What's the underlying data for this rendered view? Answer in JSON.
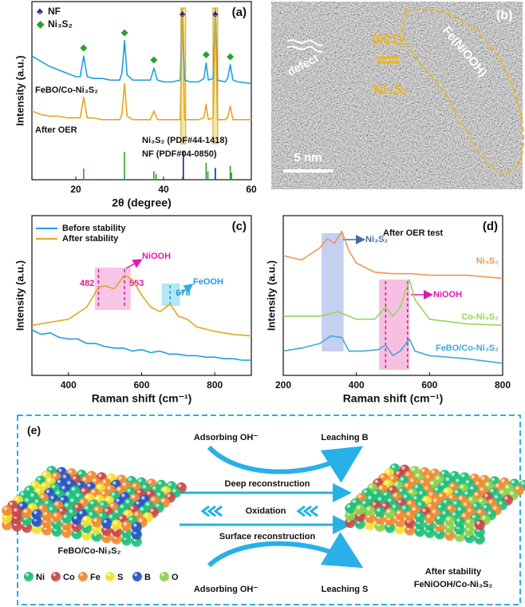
{
  "chart_data": [
    {
      "type": "line",
      "label": "(a)",
      "xlabel": "2θ (degree)",
      "ylabel": "Intensity (a.u.)",
      "xlim": [
        10,
        60
      ],
      "xticks": [
        20,
        40,
        60
      ],
      "ylim": [
        0,
        100
      ],
      "legend": [
        {
          "symbol": "♣",
          "label": "NF",
          "color": "#1a2a6c"
        },
        {
          "symbol": "◆",
          "label": "Ni₃S₂",
          "color": "#2ca02c"
        }
      ],
      "x": [
        10,
        12,
        14,
        16,
        18,
        20,
        21,
        21.8,
        22.6,
        24,
        26,
        28,
        30,
        30.5,
        31.1,
        31.7,
        33,
        35,
        37,
        37.8,
        38.6,
        40,
        42,
        43.8,
        44.3,
        44.8,
        46,
        48,
        49.2,
        49.7,
        50.2,
        51.3,
        51.8,
        52.3,
        54,
        54.6,
        55.2,
        55.8,
        57,
        60
      ],
      "series": [
        {
          "name": "FeBO/Co-Ni₃S₂",
          "color": "#1e9fe0",
          "values": [
            72,
            69,
            66,
            64,
            62,
            60,
            60,
            72,
            60,
            59,
            59,
            58,
            58,
            62,
            81,
            61,
            58,
            58,
            58,
            65,
            58,
            57,
            57,
            58,
            100,
            58,
            57,
            57,
            59,
            68,
            58,
            59,
            100,
            58,
            57,
            59,
            67,
            58,
            57,
            56
          ]
        },
        {
          "name": "After OER",
          "color": "#e3a623",
          "values": [
            40,
            38,
            37,
            37,
            36,
            36,
            36,
            48,
            36,
            36,
            35,
            35,
            35,
            38,
            56,
            37,
            35,
            35,
            35,
            40,
            35,
            35,
            35,
            35,
            100,
            35,
            35,
            35,
            36,
            44,
            35,
            36,
            100,
            35,
            35,
            36,
            43,
            35,
            35,
            35
          ]
        }
      ],
      "peak_markers": [
        {
          "x": 21.8,
          "symbol": "◆"
        },
        {
          "x": 31.1,
          "symbol": "◆"
        },
        {
          "x": 37.8,
          "symbol": "◆"
        },
        {
          "x": 44.3,
          "symbol": "♣"
        },
        {
          "x": 49.7,
          "symbol": "◆"
        },
        {
          "x": 51.8,
          "symbol": "♣"
        },
        {
          "x": 55.2,
          "symbol": "◆"
        }
      ],
      "references": [
        {
          "name": "Ni₃S₂ (PDF#44-1418)",
          "color": "#2ca02c",
          "x": [
            21.8,
            31.1,
            37.8,
            38.3,
            44.3,
            49.7,
            50.1,
            55.2,
            55.5
          ],
          "values": [
            40,
            100,
            30,
            20,
            10,
            60,
            30,
            50,
            25
          ]
        },
        {
          "name": "NF (PDF#04-0850)",
          "color": "#1a2a6c",
          "x": [
            44.5,
            51.8
          ],
          "values": [
            100,
            42
          ]
        }
      ]
    },
    {
      "type": "line",
      "label": "(c)",
      "xlabel": "Raman shift (cm⁻¹)",
      "ylabel": "Intensity (a.u.)",
      "xlim": [
        300,
        900
      ],
      "xticks": [
        400,
        600,
        800
      ],
      "ylim": [
        0,
        100
      ],
      "legend_loc": "upper left",
      "series": [
        {
          "name": "Before stability",
          "color": "#1e9fe0",
          "x": [
            300,
            325,
            350,
            375,
            400,
            425,
            450,
            475,
            500,
            525,
            550,
            575,
            600,
            625,
            650,
            675,
            700,
            725,
            750,
            775,
            800,
            825,
            850,
            875,
            900
          ],
          "values": [
            30,
            27,
            28,
            25,
            24,
            24,
            21,
            21,
            19,
            18,
            18,
            16,
            17,
            15,
            16,
            14,
            14,
            13,
            13,
            12,
            12,
            11,
            11,
            10,
            10
          ]
        },
        {
          "name": "After stability",
          "color": "#e3a623",
          "x": [
            300,
            350,
            400,
            450,
            482,
            500,
            525,
            553,
            575,
            600,
            625,
            650,
            678,
            700,
            725,
            750,
            800,
            850,
            900
          ],
          "values": [
            33,
            35,
            37,
            45,
            58,
            59,
            57,
            66,
            63,
            53,
            45,
            42,
            47,
            39,
            37,
            32,
            29,
            27,
            26
          ]
        }
      ],
      "peak_labels": [
        482,
        553,
        678
      ],
      "annotations": [
        "NiOOH",
        "FeOOH"
      ]
    },
    {
      "type": "line",
      "label": "(d)",
      "xlabel": "Raman shift (cm⁻¹)",
      "ylabel": "Intensity (a.u.)",
      "xlim": [
        200,
        800
      ],
      "xticks": [
        200,
        400,
        600,
        800
      ],
      "ylim": [
        0,
        100
      ],
      "series": [
        {
          "name": "Ni₃S₂",
          "color": "#f0955a",
          "x": [
            200,
            250,
            300,
            320,
            340,
            360,
            380,
            400,
            450,
            500,
            550,
            600,
            700,
            800
          ],
          "values": [
            79,
            76,
            84,
            90,
            87,
            95,
            82,
            74,
            68,
            67,
            67,
            66,
            66,
            64
          ]
        },
        {
          "name": "Co-Ni₃S₂",
          "color": "#9ad45a",
          "x": [
            200,
            300,
            350,
            400,
            450,
            480,
            500,
            520,
            545,
            560,
            600,
            700,
            800
          ],
          "values": [
            39,
            39,
            42,
            37,
            37,
            45,
            39,
            45,
            63,
            50,
            37,
            34,
            33
          ]
        },
        {
          "name": "FeBO/Co-Ni₃S₂",
          "color": "#3fa9dc",
          "x": [
            200,
            250,
            300,
            330,
            360,
            380,
            420,
            460,
            480,
            500,
            520,
            545,
            560,
            600,
            700,
            800
          ],
          "values": [
            16,
            18,
            21,
            26,
            25,
            16,
            16,
            17,
            20,
            13,
            16,
            24,
            16,
            13,
            11,
            8
          ]
        }
      ],
      "annotations": [
        "After OER test",
        "Ni₃S₂",
        "NiOOH"
      ]
    }
  ],
  "panel_b": {
    "label": "(b)",
    "texts": [
      "defect",
      "(021)",
      "Ni₃S₂",
      "Fe(NiOOH)"
    ],
    "scale_bar": "5 nm"
  },
  "panel_e": {
    "label": "(e)",
    "left_caption": "FeBO/Co-Ni₃S₂",
    "right_caption": [
      "After stability",
      "FeNiOOH/Co-Ni₃S₂"
    ],
    "top": [
      "Adsorbing OH⁻",
      "Leaching B"
    ],
    "middle": [
      "Deep reconstruction",
      "Oxidation",
      "Surface reconstruction"
    ],
    "bottom": [
      "Adsorbing OH⁻",
      "Leaching S"
    ],
    "atom_legend": [
      {
        "label": "Ni",
        "color": "#1fbf7a"
      },
      {
        "label": "Co",
        "color": "#c84848"
      },
      {
        "label": "Fe",
        "color": "#f08a30"
      },
      {
        "label": "S",
        "color": "#f2e030"
      },
      {
        "label": "B",
        "color": "#2456c0"
      },
      {
        "label": "O",
        "color": "#8fd04a"
      }
    ]
  }
}
